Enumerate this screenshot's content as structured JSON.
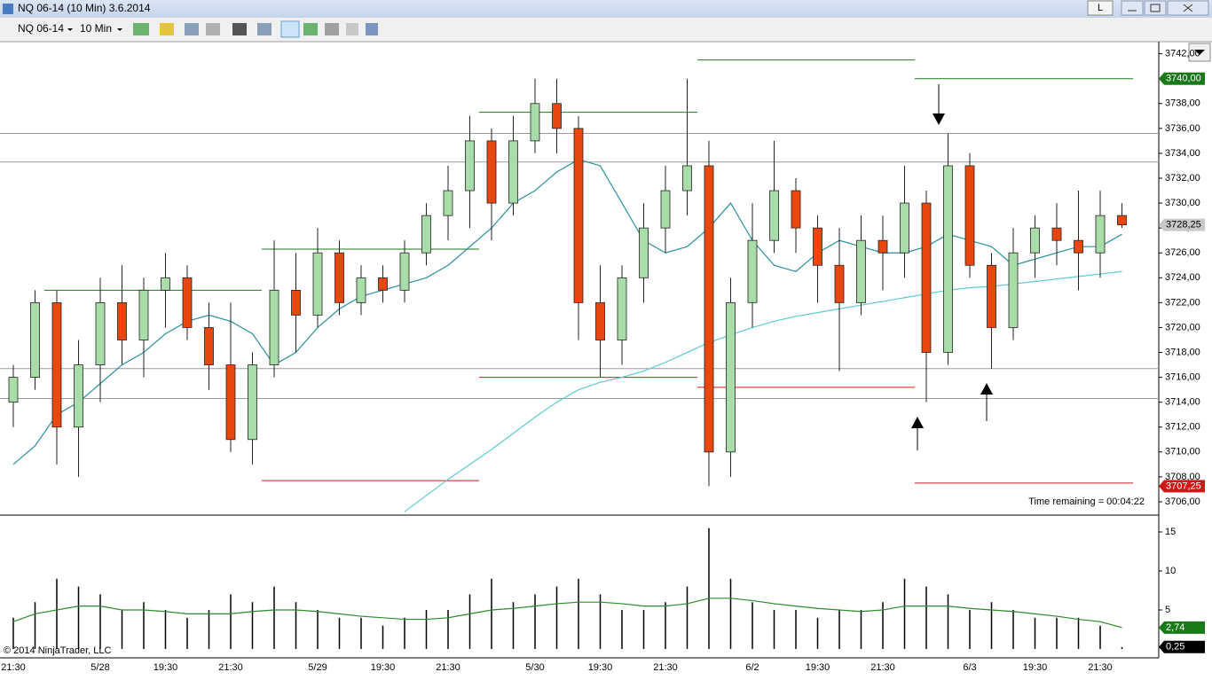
{
  "window": {
    "title": "NQ 06-14 (10 Min)  3.6.2014",
    "button": "L"
  },
  "toolbar": {
    "instrument": "NQ 06-14",
    "interval": "10 Min"
  },
  "status": {
    "time_remaining": "Time remaining = 00:04:22",
    "copyright": "© 2014 NinjaTrader, LLC"
  },
  "chart_data": [
    {
      "type": "candlestick",
      "open": [
        3714,
        3716,
        3722,
        3712,
        3717,
        3722,
        3719,
        3723,
        3724,
        3720,
        3717,
        3711,
        3717,
        3723,
        3721,
        3726,
        3722,
        3724,
        3723,
        3726,
        3729,
        3731,
        3735,
        3730,
        3735,
        3738,
        3736,
        3722,
        3719,
        3724,
        3728,
        3731,
        3733,
        3710,
        3722,
        3727,
        3731,
        3728,
        3725,
        3722,
        3727,
        3726,
        3730,
        3718,
        3733,
        3725,
        3720,
        3726,
        3728,
        3727,
        3726,
        3729
      ],
      "high": [
        3717,
        3723,
        3723,
        3719,
        3724,
        3725,
        3724,
        3726,
        3725,
        3722,
        3722,
        3718,
        3727,
        3726,
        3728,
        3727,
        3725,
        3725,
        3727,
        3730,
        3733,
        3737,
        3736,
        3737,
        3740,
        3740,
        3737,
        3725,
        3725,
        3730,
        3733,
        3740,
        3735,
        3724,
        3730,
        3735,
        3732,
        3729,
        3728,
        3729,
        3729,
        3733,
        3731,
        3735.6,
        3734,
        3726,
        3728,
        3729,
        3730,
        3731,
        3731,
        3730
      ],
      "low": [
        3712,
        3715,
        3709,
        3708,
        3714,
        3717,
        3716,
        3720,
        3719,
        3715,
        3710,
        3709,
        3716,
        3718,
        3720,
        3721,
        3721,
        3722,
        3722,
        3725,
        3727,
        3728,
        3727,
        3729,
        3734,
        3734,
        3719,
        3716,
        3717,
        3722,
        3726,
        3729,
        3707.25,
        3708,
        3720,
        3726,
        3726,
        3722,
        3716.5,
        3721,
        3723,
        3724,
        3714,
        3717,
        3724,
        3716.7,
        3719,
        3724,
        3725,
        3723,
        3724,
        3728
      ],
      "close": [
        3716,
        3722,
        3712,
        3717,
        3722,
        3719,
        3723,
        3724,
        3720,
        3717,
        3711,
        3717,
        3723,
        3721,
        3726,
        3722,
        3724,
        3723,
        3726,
        3729,
        3731,
        3735,
        3730,
        3735,
        3738,
        3736,
        3722,
        3719,
        3724,
        3728,
        3731,
        3733,
        3710,
        3722,
        3727,
        3731,
        3728,
        3725,
        3722,
        3727,
        3726,
        3730,
        3718,
        3733,
        3725,
        3720,
        3726,
        3728,
        3727,
        3726,
        3729,
        3728.25
      ],
      "up_color": "#a8dca8",
      "down_color": "#e8470f",
      "lines": [
        {
          "color": "#2b8f9c",
          "values": [
            3709,
            3710.5,
            3713,
            3714,
            3715.5,
            3717,
            3718,
            3719.5,
            3720.5,
            3721,
            3720.5,
            3719.5,
            3717,
            3718,
            3720,
            3721.5,
            3722.5,
            3723,
            3723.5,
            3724,
            3725,
            3726.5,
            3728,
            3730,
            3731,
            3732.5,
            3733.5,
            3733,
            3730,
            3727,
            3726,
            3726.5,
            3728,
            3730,
            3727,
            3725,
            3724.5,
            3726,
            3727,
            3726.5,
            3726,
            3726,
            3726.5,
            3727.5,
            3727,
            3726.5,
            3725,
            3725.5,
            3726,
            3726.5,
            3726.5,
            3727.5
          ]
        },
        {
          "color": "#5ccad2",
          "values": [
            null,
            null,
            null,
            null,
            null,
            null,
            null,
            null,
            null,
            null,
            null,
            null,
            null,
            null,
            null,
            null,
            null,
            null,
            3705.2,
            3706.5,
            3707.8,
            3709,
            3710.2,
            3711.5,
            3712.8,
            3714,
            3715,
            3715.6,
            3716,
            3716.5,
            3717.2,
            3718,
            3718.8,
            3719.4,
            3720,
            3720.5,
            3720.9,
            3721.2,
            3721.5,
            3721.8,
            3722.1,
            3722.4,
            3722.7,
            3723,
            3723.2,
            3723.3,
            3723.5,
            3723.7,
            3723.9,
            3724.1,
            3724.3,
            3724.5
          ]
        }
      ],
      "hlines": [
        3735.6,
        3733.3,
        3716.7,
        3714.3
      ],
      "levels": [
        {
          "value": 3723,
          "color": "#1a7a1a"
        },
        {
          "value": 3726.3,
          "color": "#1a7a1a"
        },
        {
          "value": 3737.3,
          "color": "#1a7a1a"
        },
        {
          "value": 3741.5,
          "color": "#1a7a1a"
        },
        {
          "value": 3740,
          "color": "#1a7a1a"
        },
        {
          "value": 3707.7,
          "color": "#d01818"
        },
        {
          "value": 3716,
          "color": "#d01818"
        },
        {
          "value": 3715.2,
          "color": "#d01818"
        },
        {
          "value": 3707.5,
          "color": "#d01818"
        }
      ],
      "ylim": [
        3705,
        3742.9
      ],
      "yticks": [
        {
          "value": 3706,
          "label": "3706,00"
        },
        {
          "value": 3708,
          "label": "3708,00"
        },
        {
          "value": 3710,
          "label": "3710,00"
        },
        {
          "value": 3712,
          "label": "3712,00"
        },
        {
          "value": 3714,
          "label": "3714,00"
        },
        {
          "value": 3716,
          "label": "3716,00"
        },
        {
          "value": 3718,
          "label": "3718,00"
        },
        {
          "value": 3720,
          "label": "3720,00"
        },
        {
          "value": 3722,
          "label": "3722,00"
        },
        {
          "value": 3724,
          "label": "3724,00"
        },
        {
          "value": 3726,
          "label": "3726,00"
        },
        {
          "value": 3728,
          "label": "3728,00"
        },
        {
          "value": 3730,
          "label": "3730,00"
        },
        {
          "value": 3732,
          "label": "3732,00"
        },
        {
          "value": 3734,
          "label": "3734,00"
        },
        {
          "value": 3736,
          "label": "3736,00"
        },
        {
          "value": 3738,
          "label": "3738,00"
        },
        {
          "value": 3740,
          "label": "3740,00"
        },
        {
          "value": 3742,
          "label": "3742,00"
        }
      ],
      "markers": [
        {
          "value": 3740,
          "label": "3740,00",
          "color": "#1a7a1a",
          "text_color": "#ffffff"
        },
        {
          "value": 3728.25,
          "label": "3728,25",
          "color": "#c8c8c8",
          "text_color": "#000000"
        },
        {
          "value": 3707.25,
          "label": "3707,25",
          "color": "#d01818",
          "text_color": "#ffffff"
        }
      ]
    },
    {
      "type": "bar",
      "categories": [
        "21:30",
        null,
        null,
        null,
        "5/28",
        null,
        null,
        "19:30",
        null,
        null,
        "21:30",
        null,
        null,
        null,
        "5/29",
        null,
        null,
        "19:30",
        null,
        null,
        "21:30",
        null,
        null,
        null,
        "5/30",
        null,
        null,
        "19:30",
        null,
        null,
        "21:30",
        null,
        null,
        null,
        "6/2",
        null,
        null,
        "19:30",
        null,
        null,
        "21:30",
        null,
        null,
        null,
        "6/3",
        null,
        null,
        "19:30",
        null,
        null,
        "21:30",
        null
      ],
      "values": [
        4,
        6,
        9,
        8,
        7,
        5,
        6,
        5,
        4,
        5,
        7,
        6,
        8,
        6,
        5,
        4,
        4,
        3,
        4,
        5,
        5,
        7,
        9,
        6,
        7,
        8,
        9,
        7,
        5,
        5,
        6,
        8,
        15.5,
        9,
        6,
        5,
        5,
        4,
        5,
        5,
        6,
        9,
        8,
        7,
        5,
        6,
        5,
        4,
        4,
        4,
        3,
        0.25
      ],
      "color": "#000000",
      "average": {
        "color": "#2e8b2e",
        "values": [
          3.5,
          4.5,
          5,
          5.5,
          5.5,
          5,
          5,
          4.8,
          4.5,
          4.5,
          4.5,
          4.8,
          5,
          5,
          4.8,
          4.5,
          4.2,
          4,
          3.8,
          3.8,
          4,
          4.5,
          5,
          5.2,
          5.5,
          5.8,
          6,
          6,
          5.8,
          5.5,
          5.5,
          5.8,
          6.5,
          6.5,
          6.2,
          5.8,
          5.5,
          5.2,
          5,
          4.8,
          5,
          5.5,
          5.5,
          5.5,
          5.2,
          5,
          4.8,
          4.5,
          4.2,
          3.8,
          3.5,
          2.74
        ]
      },
      "ylim": [
        0,
        16.5
      ],
      "yticks": [
        5,
        10,
        15
      ],
      "markers": [
        {
          "value": 2.74,
          "label": "2,74",
          "color": "#1a7a1a",
          "text_color": "#ffffff"
        },
        {
          "value": 0.25,
          "label": "0,25",
          "color": "#000000",
          "text_color": "#ffffff"
        }
      ]
    }
  ]
}
